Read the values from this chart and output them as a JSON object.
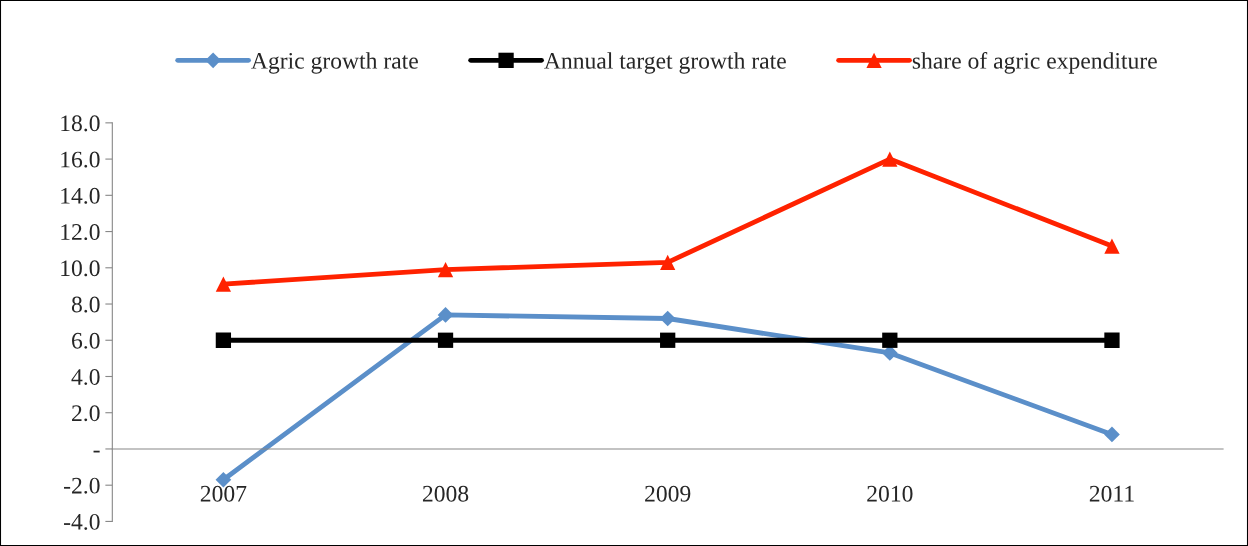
{
  "chart_data": {
    "type": "line",
    "categories": [
      "2007",
      "2008",
      "2009",
      "2010",
      "2011"
    ],
    "series": [
      {
        "name": "Agric growth rate",
        "color": "#5b8fc9",
        "marker": "diamond",
        "values": [
          -1.7,
          7.4,
          7.2,
          5.3,
          0.8
        ]
      },
      {
        "name": "Annual target growth rate",
        "color": "#000000",
        "marker": "square",
        "values": [
          6.0,
          6.0,
          6.0,
          6.0,
          6.0
        ]
      },
      {
        "name": "share of agric expenditure",
        "color": "#ff2200",
        "marker": "triangle",
        "values": [
          9.1,
          9.9,
          10.3,
          16.0,
          11.2
        ]
      }
    ],
    "ylim": [
      -4,
      18
    ],
    "yticks": [
      {
        "value": -4,
        "label": "-4.0"
      },
      {
        "value": -2,
        "label": "-2.0"
      },
      {
        "value": 0,
        "label": "-"
      },
      {
        "value": 2,
        "label": "2.0"
      },
      {
        "value": 4,
        "label": "4.0"
      },
      {
        "value": 6,
        "label": "6.0"
      },
      {
        "value": 8,
        "label": "8.0"
      },
      {
        "value": 10,
        "label": "10.0"
      },
      {
        "value": 12,
        "label": "12.0"
      },
      {
        "value": 14,
        "label": "14.0"
      },
      {
        "value": 16,
        "label": "16.0"
      },
      {
        "value": 18,
        "label": "18.0"
      }
    ],
    "grid": false,
    "legend": "top",
    "line_style": "solid"
  }
}
